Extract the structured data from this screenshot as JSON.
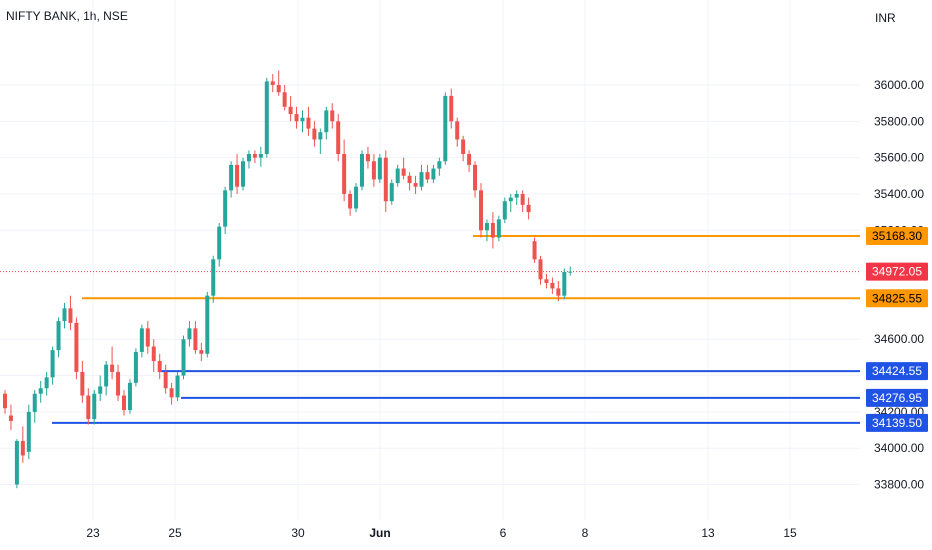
{
  "header": {
    "title": "NIFTY BANK, 1h, NSE",
    "currency": "INR"
  },
  "colors": {
    "up": "#26a69a",
    "down": "#ef5350",
    "orange": "#ff9800",
    "blue": "#1e53e5",
    "current": "#f23645"
  },
  "chart_data": {
    "type": "candlestick",
    "title": "NIFTY BANK, 1h, NSE",
    "ylim": [
      33780,
      36150
    ],
    "price_ticks": [
      36000,
      35800,
      35600,
      35400,
      35200,
      34600,
      34400,
      34200,
      34000,
      33800
    ],
    "price_tick_labels": [
      "36000.00",
      "35800.00",
      "35600.00",
      "35400.00",
      "35200.00",
      "34600.00",
      "34400.00",
      "34200.00",
      "34000.00",
      "33800.00"
    ],
    "x_ticks": [
      "23",
      "25",
      "30",
      "Jun",
      "6",
      "8",
      "13",
      "15"
    ],
    "current_price": {
      "value": 34972.05,
      "label": "34972.05"
    },
    "levels": [
      {
        "value": 35168.3,
        "label": "35168.30",
        "color": "orange"
      },
      {
        "value": 34825.55,
        "label": "34825.55",
        "color": "orange"
      },
      {
        "value": 34424.55,
        "label": "34424.55",
        "color": "blue"
      },
      {
        "value": 34276.95,
        "label": "34276.95",
        "color": "blue"
      },
      {
        "value": 34139.5,
        "label": "34139.50",
        "color": "blue"
      }
    ],
    "candles": [
      [
        34300,
        34320,
        34190,
        34220
      ],
      [
        34180,
        34240,
        34100,
        34150
      ],
      [
        33800,
        34050,
        33780,
        34040
      ],
      [
        34040,
        34120,
        33920,
        33960
      ],
      [
        33980,
        34240,
        33940,
        34200
      ],
      [
        34200,
        34320,
        34140,
        34300
      ],
      [
        34300,
        34370,
        34250,
        34330
      ],
      [
        34330,
        34420,
        34290,
        34390
      ],
      [
        34390,
        34560,
        34350,
        34540
      ],
      [
        34540,
        34720,
        34500,
        34700
      ],
      [
        34700,
        34800,
        34660,
        34770
      ],
      [
        34770,
        34840,
        34650,
        34690
      ],
      [
        34690,
        34720,
        34380,
        34420
      ],
      [
        34420,
        34480,
        34250,
        34290
      ],
      [
        34290,
        34330,
        34130,
        34160
      ],
      [
        34160,
        34320,
        34130,
        34300
      ],
      [
        34300,
        34400,
        34260,
        34340
      ],
      [
        34340,
        34480,
        34290,
        34460
      ],
      [
        34460,
        34560,
        34380,
        34420
      ],
      [
        34420,
        34460,
        34260,
        34290
      ],
      [
        34290,
        34320,
        34180,
        34210
      ],
      [
        34210,
        34380,
        34190,
        34360
      ],
      [
        34360,
        34550,
        34340,
        34530
      ],
      [
        34530,
        34680,
        34500,
        34660
      ],
      [
        34660,
        34700,
        34520,
        34560
      ],
      [
        34560,
        34600,
        34420,
        34480
      ],
      [
        34480,
        34520,
        34380,
        34420
      ],
      [
        34420,
        34460,
        34300,
        34330
      ],
      [
        34330,
        34360,
        34240,
        34280
      ],
      [
        34280,
        34420,
        34260,
        34400
      ],
      [
        34400,
        34620,
        34380,
        34600
      ],
      [
        34600,
        34700,
        34560,
        34660
      ],
      [
        34660,
        34700,
        34520,
        34540
      ],
      [
        34540,
        34580,
        34480,
        34520
      ],
      [
        34520,
        34860,
        34500,
        34840
      ],
      [
        34840,
        35060,
        34800,
        35040
      ],
      [
        35040,
        35240,
        35000,
        35220
      ],
      [
        35220,
        35440,
        35180,
        35420
      ],
      [
        35420,
        35580,
        35380,
        35560
      ],
      [
        35560,
        35620,
        35400,
        35440
      ],
      [
        35440,
        35600,
        35420,
        35580
      ],
      [
        35580,
        35640,
        35540,
        35620
      ],
      [
        35620,
        35640,
        35570,
        35600
      ],
      [
        35600,
        35660,
        35550,
        35620
      ],
      [
        35620,
        36040,
        35600,
        36020
      ],
      [
        36020,
        36060,
        35960,
        36000
      ],
      [
        36000,
        36080,
        35940,
        35960
      ],
      [
        35960,
        36000,
        35860,
        35880
      ],
      [
        35880,
        35940,
        35800,
        35840
      ],
      [
        35840,
        35880,
        35760,
        35800
      ],
      [
        35800,
        35860,
        35740,
        35820
      ],
      [
        35820,
        35880,
        35720,
        35760
      ],
      [
        35760,
        35800,
        35660,
        35700
      ],
      [
        35700,
        35760,
        35620,
        35740
      ],
      [
        35740,
        35880,
        35700,
        35860
      ],
      [
        35860,
        35900,
        35760,
        35800
      ],
      [
        35800,
        35840,
        35580,
        35620
      ],
      [
        35620,
        35700,
        35360,
        35400
      ],
      [
        35400,
        35420,
        35280,
        35320
      ],
      [
        35320,
        35460,
        35300,
        35440
      ],
      [
        35440,
        35640,
        35420,
        35620
      ],
      [
        35620,
        35660,
        35540,
        35580
      ],
      [
        35580,
        35620,
        35440,
        35480
      ],
      [
        35480,
        35620,
        35460,
        35600
      ],
      [
        35600,
        35640,
        35300,
        35360
      ],
      [
        35360,
        35480,
        35340,
        35460
      ],
      [
        35460,
        35560,
        35440,
        35540
      ],
      [
        35540,
        35600,
        35480,
        35500
      ],
      [
        35500,
        35520,
        35420,
        35460
      ],
      [
        35460,
        35500,
        35400,
        35440
      ],
      [
        35440,
        35560,
        35420,
        35520
      ],
      [
        35520,
        35560,
        35460,
        35480
      ],
      [
        35480,
        35560,
        35460,
        35540
      ],
      [
        35540,
        35600,
        35500,
        35580
      ],
      [
        35580,
        35960,
        35560,
        35940
      ],
      [
        35940,
        35980,
        35760,
        35800
      ],
      [
        35800,
        35820,
        35660,
        35700
      ],
      [
        35700,
        35720,
        35580,
        35620
      ],
      [
        35620,
        35640,
        35520,
        35560
      ],
      [
        35560,
        35580,
        35380,
        35420
      ],
      [
        35420,
        35460,
        35160,
        35200
      ],
      [
        35200,
        35260,
        35140,
        35240
      ],
      [
        35240,
        35300,
        35100,
        35160
      ],
      [
        35160,
        35280,
        35140,
        35260
      ],
      [
        35260,
        35380,
        35240,
        35360
      ],
      [
        35360,
        35400,
        35300,
        35380
      ],
      [
        35380,
        35420,
        35340,
        35400
      ],
      [
        35400,
        35420,
        35300,
        35340
      ],
      [
        35340,
        35380,
        35260,
        35300
      ],
      [
        35140,
        35160,
        35020,
        35040
      ],
      [
        35040,
        35060,
        34900,
        34930
      ],
      [
        34930,
        34960,
        34880,
        34910
      ],
      [
        34910,
        34940,
        34850,
        34880
      ],
      [
        34880,
        34920,
        34810,
        34840
      ],
      [
        34840,
        34990,
        34820,
        34970
      ],
      [
        34970,
        35000,
        34950,
        34972.05
      ]
    ]
  }
}
